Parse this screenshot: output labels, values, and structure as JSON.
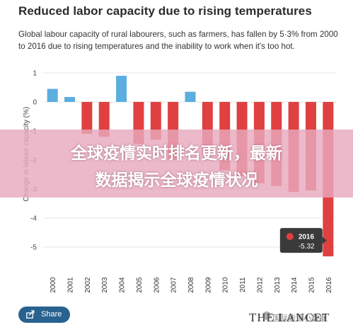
{
  "header": {
    "title": "Reduced labor capacity due to rising temperatures",
    "subtitle": "Global labour capacity of rural labourers, such as farmers, has fallen by 5·3% from 2000 to 2016 due to rising temperatures and the inability to work when it's too hot."
  },
  "chart_data": {
    "type": "bar",
    "categories": [
      "2000",
      "2001",
      "2002",
      "2003",
      "2004",
      "2005",
      "2006",
      "2007",
      "2008",
      "2009",
      "2010",
      "2011",
      "2012",
      "2013",
      "2014",
      "2015",
      "2016"
    ],
    "values": [
      0.45,
      0.17,
      -1.1,
      -1.2,
      0.9,
      -1.45,
      -1.3,
      -2.0,
      0.35,
      -1.85,
      -2.35,
      -2.55,
      -2.8,
      -2.9,
      -3.1,
      -3.05,
      -5.32
    ],
    "ylabel": "Change in labour capacity (%)",
    "xlabel": "",
    "ylim": [
      -5.5,
      1
    ],
    "yticks": [
      1,
      0,
      -1,
      -2,
      -3,
      -4,
      -5
    ],
    "colors": {
      "positive": "#5aaee0",
      "negative": "#e04040",
      "grid": "#e6e6e6"
    },
    "tooltip": {
      "category": "2016",
      "value_label": "-5.32",
      "marker_color": "#e04040"
    },
    "grid": true
  },
  "overlay": {
    "line1": "全球疫情实时排名更新，最新",
    "line2": "数据揭示全球疫情状况"
  },
  "footer": {
    "share_label": "Share",
    "share_icon": "share-icon",
    "logo_text": "THE LANCET",
    "watermark_text": "国际能源小数据"
  }
}
